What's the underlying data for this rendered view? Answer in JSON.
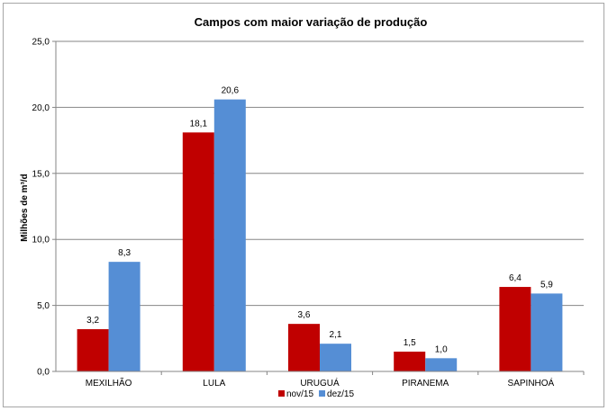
{
  "chart_data": {
    "type": "bar",
    "title": "Campos com maior variação de produção",
    "xlabel": "",
    "ylabel": "Milhões de m³/d",
    "ylim": [
      0,
      25
    ],
    "yticks": [
      "0,0",
      "5,0",
      "10,0",
      "15,0",
      "20,0",
      "25,0"
    ],
    "categories": [
      "MEXILHÃO",
      "LULA",
      "URUGUÁ",
      "PIRANEMA",
      "SAPINHOÁ"
    ],
    "series": [
      {
        "name": "nov/15",
        "color": "#c00000",
        "values": [
          3.2,
          18.1,
          3.6,
          1.5,
          6.4
        ],
        "labels": [
          "3,2",
          "18,1",
          "3,6",
          "1,5",
          "6,4"
        ]
      },
      {
        "name": "dez/15",
        "color": "#558ed5",
        "values": [
          8.3,
          20.6,
          2.1,
          1.0,
          5.9
        ],
        "labels": [
          "8,3",
          "20,6",
          "2,1",
          "1,0",
          "5,9"
        ]
      }
    ],
    "grid": true,
    "legend_position": "bottom"
  }
}
